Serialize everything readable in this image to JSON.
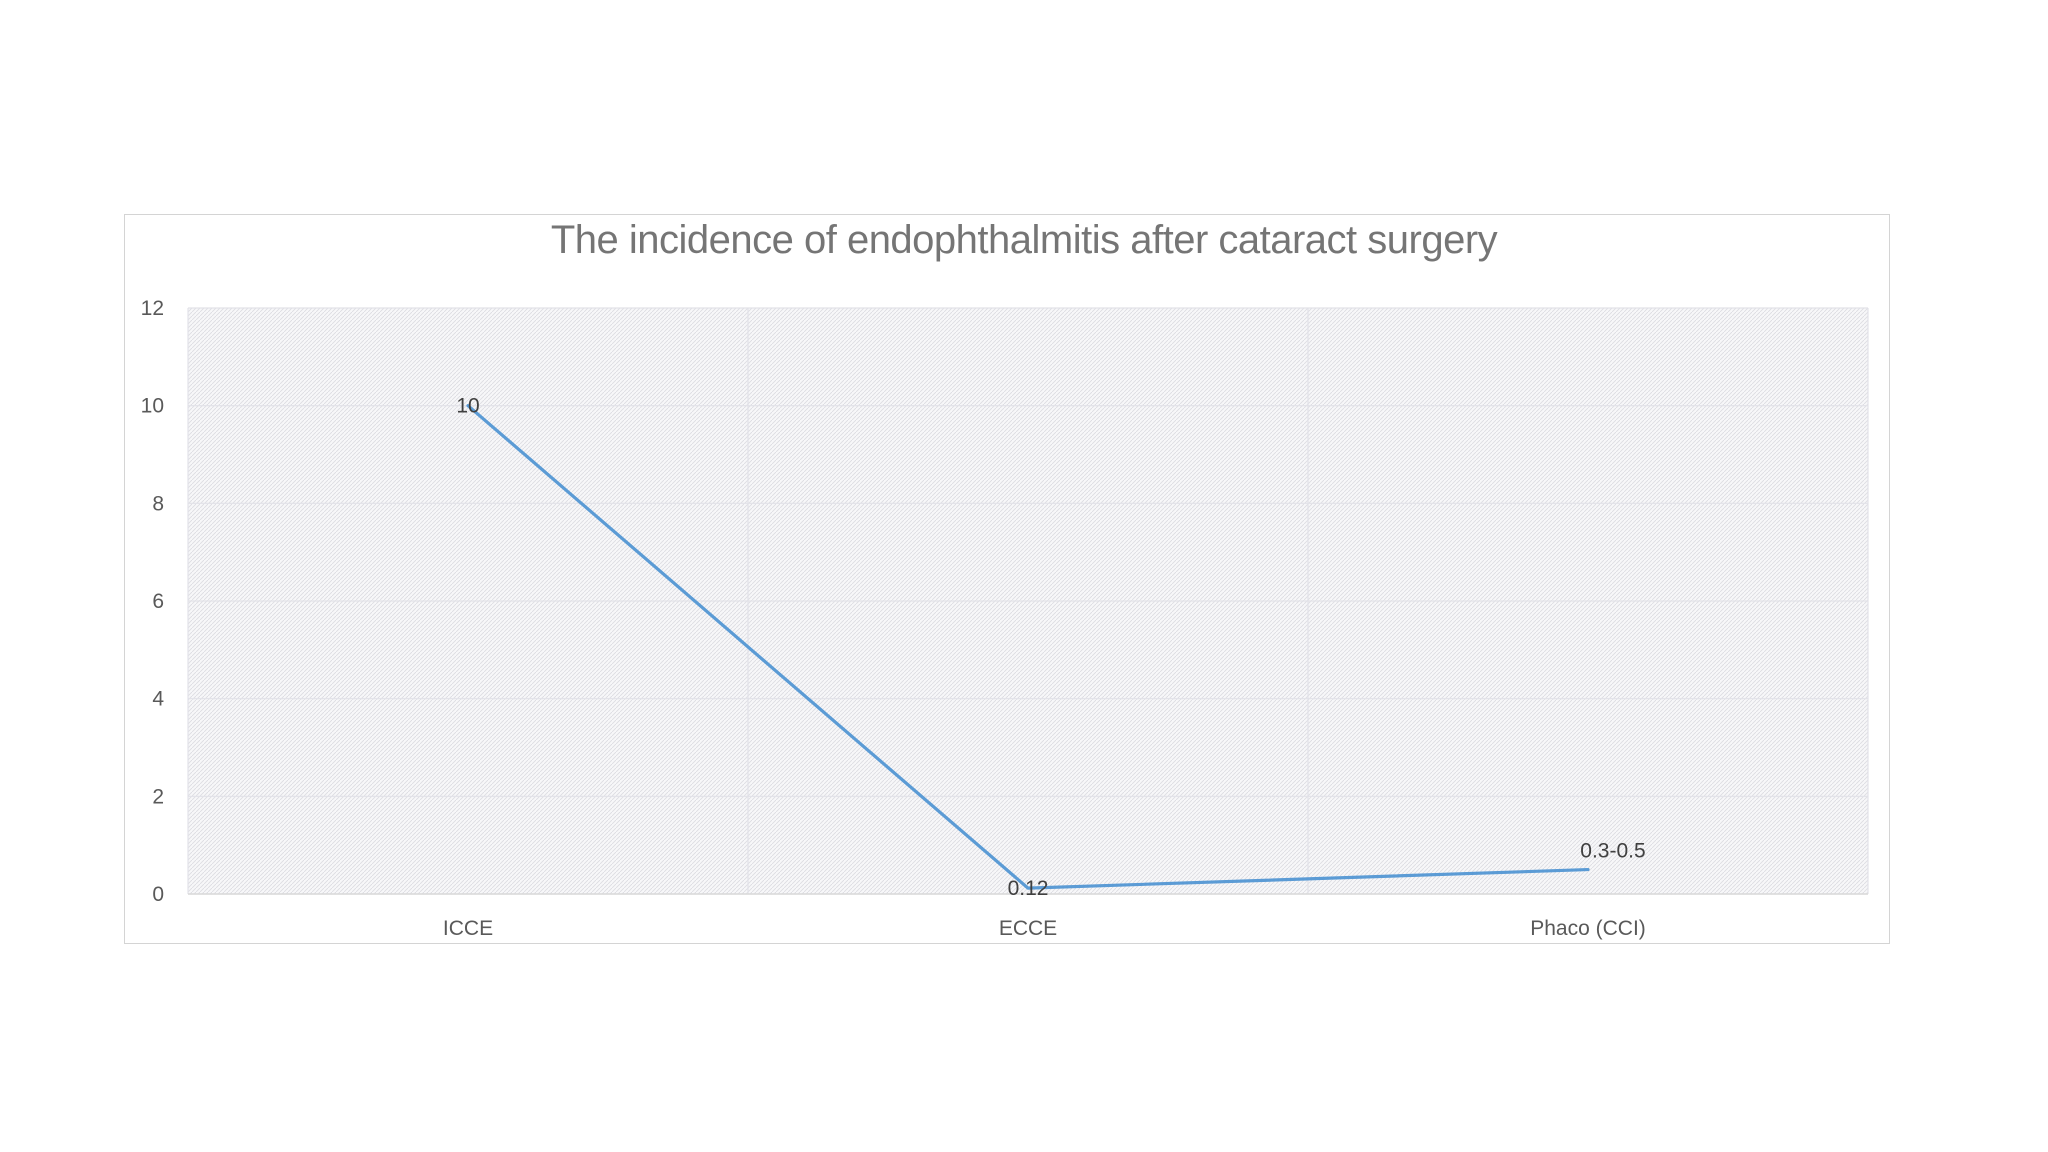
{
  "chart_data": {
    "type": "line",
    "title": "The incidence of endophthalmitis after cataract surgery",
    "xlabel": "",
    "ylabel": "",
    "categories": [
      "ICCE",
      "ECCE",
      "Phaco (CCI)"
    ],
    "series": [
      {
        "values": [
          10,
          0.12,
          0.5
        ],
        "data_labels": [
          "10",
          "0.12",
          "0.3-0.5"
        ],
        "color": "#5b9bd5"
      }
    ],
    "ylim": [
      0,
      12
    ],
    "yticks": [
      "0",
      "2",
      "4",
      "6",
      "8",
      "10",
      "12"
    ],
    "grid": true,
    "legend": "none",
    "plot_background": "hatched-gray"
  }
}
